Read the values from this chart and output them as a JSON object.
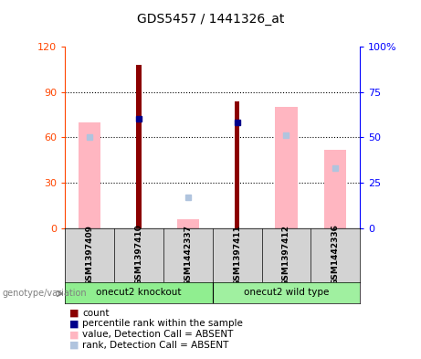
{
  "title": "GDS5457 / 1441326_at",
  "samples": [
    "GSM1397409",
    "GSM1397410",
    "GSM1442337",
    "GSM1397411",
    "GSM1397412",
    "GSM1442336"
  ],
  "count_values": [
    0,
    108,
    0,
    84,
    0,
    0
  ],
  "count_color": "#8B0000",
  "percentile_values": [
    -1,
    60,
    -1,
    58,
    -1,
    -1
  ],
  "percentile_color": "#00008B",
  "absent_value_values": [
    70,
    -1,
    6,
    -1,
    80,
    52
  ],
  "absent_value_color": "#FFB6C1",
  "absent_rank_values": [
    50,
    -1,
    17,
    -1,
    51,
    33
  ],
  "absent_rank_color": "#B0C4DE",
  "ylim_left": [
    0,
    120
  ],
  "ylim_right": [
    0,
    100
  ],
  "yticks_left": [
    0,
    30,
    60,
    90,
    120
  ],
  "yticks_right": [
    0,
    25,
    50,
    75,
    100
  ],
  "yticklabels_left": [
    "0",
    "30",
    "60",
    "90",
    "120"
  ],
  "yticklabels_right": [
    "0",
    "25",
    "50",
    "75",
    "100%"
  ],
  "left_axis_color": "#FF4500",
  "right_axis_color": "#0000FF",
  "bg_color": "#FFFFFF",
  "plot_bg_color": "#FFFFFF",
  "grid_color": "#000000",
  "absent_bar_width": 0.45,
  "count_bar_width": 0.1,
  "group1_name": "onecut2 knockout",
  "group2_name": "onecut2 wild type",
  "group_color": "#90EE90",
  "sample_bg_color": "#D3D3D3",
  "legend_items": [
    {
      "label": "count",
      "color": "#8B0000"
    },
    {
      "label": "percentile rank within the sample",
      "color": "#00008B"
    },
    {
      "label": "value, Detection Call = ABSENT",
      "color": "#FFB6C1"
    },
    {
      "label": "rank, Detection Call = ABSENT",
      "color": "#B0C4DE"
    }
  ]
}
